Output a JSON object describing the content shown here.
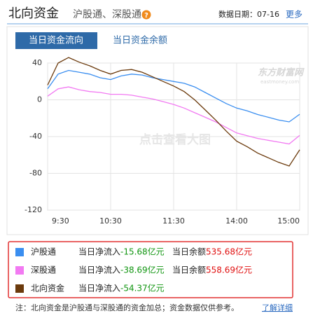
{
  "header": {
    "title": "北向资金",
    "subtitle": "沪股通、深股通",
    "help": "?",
    "date_label": "数据日期：07-16",
    "more": "更多"
  },
  "tabs": [
    "当日资金流向",
    "当日资金余额"
  ],
  "chart_data": {
    "type": "line",
    "x": [
      0,
      10,
      20,
      30,
      40,
      50,
      60,
      70,
      80,
      90,
      100,
      110,
      120,
      130,
      140,
      150,
      160,
      170,
      180,
      190,
      200,
      210,
      220,
      230,
      240
    ],
    "xlim": [
      0,
      240
    ],
    "xticks": [
      {
        "value": 0,
        "label": "9:30"
      },
      {
        "value": 60,
        "label": "10:30"
      },
      {
        "value": 120,
        "label": "11:30"
      },
      {
        "value": 180,
        "label": "14:00"
      },
      {
        "value": 240,
        "label": "15:00"
      }
    ],
    "ylim": [
      -120,
      40
    ],
    "yticks": [
      40,
      0,
      -40,
      -80,
      -120
    ],
    "grid": true,
    "watermark": "东方财富网",
    "watermark_sub": "eastmoney.com",
    "overlay_text": "点击查看大图",
    "series": [
      {
        "name": "沪股通",
        "color": "#3a8ef0",
        "net_label": "-15.68亿元",
        "balance_label": "535.68亿元",
        "values": [
          12,
          28,
          32,
          30,
          28,
          24,
          22,
          26,
          28,
          27,
          24,
          22,
          20,
          18,
          14,
          8,
          2,
          -4,
          -9,
          -12,
          -16,
          -19,
          -22,
          -24,
          -15.68
        ]
      },
      {
        "name": "深股通",
        "color": "#f27af2",
        "net_label": "-38.69亿元",
        "balance_label": "558.69亿元",
        "values": [
          4,
          12,
          14,
          11,
          9,
          8,
          6,
          6,
          5,
          3,
          1,
          -2,
          -5,
          -9,
          -14,
          -19,
          -24,
          -30,
          -36,
          -39,
          -42,
          -44,
          -46,
          -48,
          -38.69
        ]
      },
      {
        "name": "北向资金",
        "color": "#6b3a0c",
        "net_label": "-54.37亿元",
        "values": [
          16,
          40,
          46,
          41,
          37,
          32,
          28,
          32,
          33,
          30,
          25,
          20,
          15,
          9,
          0,
          -11,
          -22,
          -34,
          -45,
          -51,
          -58,
          -63,
          -68,
          -72,
          -54.37
        ]
      }
    ]
  },
  "legend": {
    "net_text": "当日净流入",
    "balance_text": "当日余额"
  },
  "footer": {
    "note": "注：北向资金是沪股通与深股通的资金加总；资金数据仅供参考。",
    "link": "了解详细"
  }
}
